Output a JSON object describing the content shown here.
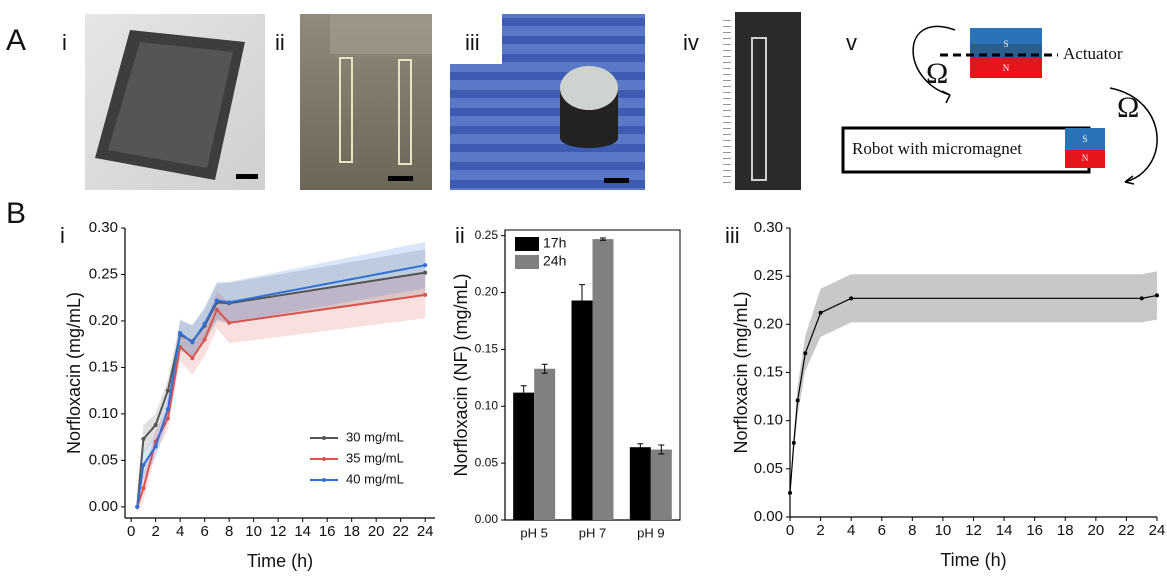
{
  "figure": {
    "panel_a": "A",
    "panel_b": "B",
    "a_subpanels": [
      "i",
      "ii",
      "iii",
      "iv",
      "v"
    ],
    "b_subpanels": [
      "i",
      "ii",
      "iii"
    ],
    "diagram": {
      "actuator": "Actuator",
      "robot": "Robot with micromagnet",
      "omega_1": "Ω",
      "omega_2": "Ω",
      "magnet_1_s": "S",
      "magnet_1_n": "N",
      "magnet_2_s": "S",
      "magnet_2_n": "N"
    }
  },
  "chart_data": [
    {
      "type": "line",
      "x_label": "Time (h)",
      "y_label": "Norfloxacin (mg/mL)",
      "x": [
        0.5,
        1,
        2,
        3,
        4,
        5,
        6,
        7,
        8,
        24
      ],
      "xlim": [
        -0.5,
        24.8
      ],
      "xticks": [
        0,
        2,
        4,
        6,
        8,
        10,
        12,
        14,
        16,
        18,
        20,
        22,
        24
      ],
      "ylim": [
        -0.012,
        0.3
      ],
      "yticks": [
        {
          "value": 0,
          "label": "0.00"
        },
        {
          "value": 0.05,
          "label": "0.05"
        },
        {
          "value": 0.1,
          "label": "0.10"
        },
        {
          "value": 0.15,
          "label": "0.15"
        },
        {
          "value": 0.2,
          "label": "0.20"
        },
        {
          "value": 0.25,
          "label": "0.25"
        },
        {
          "value": 0.3,
          "label": "0.30"
        }
      ],
      "legend": "lower right",
      "series": [
        {
          "name": "30 mg/mL",
          "color": "#555555",
          "values": [
            0,
            0.073,
            0.088,
            0.125,
            0.185,
            0.178,
            0.195,
            0.22,
            0.219,
            0.252
          ],
          "errors": [
            0.005,
            0.015,
            0.012,
            0.012,
            0.015,
            0.018,
            0.018,
            0.02,
            0.022,
            0.025
          ]
        },
        {
          "name": "35 mg/mL",
          "color": "#d9534f",
          "values": [
            0,
            0.02,
            0.07,
            0.095,
            0.172,
            0.16,
            0.18,
            0.212,
            0.198,
            0.228
          ],
          "errors": [
            0.005,
            0.015,
            0.012,
            0.012,
            0.015,
            0.018,
            0.018,
            0.02,
            0.022,
            0.025
          ]
        },
        {
          "name": "40 mg/mL",
          "color": "#2f6fd6",
          "values": [
            0,
            0.045,
            0.065,
            0.105,
            0.187,
            0.177,
            0.197,
            0.222,
            0.22,
            0.26
          ],
          "errors": [
            0.005,
            0.015,
            0.012,
            0.012,
            0.015,
            0.018,
            0.018,
            0.02,
            0.022,
            0.025
          ]
        }
      ]
    },
    {
      "type": "bar",
      "y_label": "Norfloxacin (NF) (mg/mL)",
      "categories": [
        "pH 5",
        "pH 7",
        "pH 9"
      ],
      "ylim": [
        0,
        0.255
      ],
      "yticks": [
        {
          "value": 0,
          "label": "0.00"
        },
        {
          "value": 0.05,
          "label": "0.05"
        },
        {
          "value": 0.1,
          "label": "0.10"
        },
        {
          "value": 0.15,
          "label": "0.15"
        },
        {
          "value": 0.2,
          "label": "0.20"
        },
        {
          "value": 0.25,
          "label": "0.25"
        }
      ],
      "legend": "upper left",
      "series": [
        {
          "name": "17h",
          "color": "#000000",
          "values": [
            0.112,
            0.193,
            0.064
          ],
          "errors": [
            0.006,
            0.014,
            0.003
          ]
        },
        {
          "name": "24h",
          "color": "#808080",
          "values": [
            0.133,
            0.247,
            0.062
          ],
          "errors": [
            0.004,
            0.001,
            0.004
          ]
        }
      ]
    },
    {
      "type": "line",
      "x_label": "Time (h)",
      "y_label": "Norfloxacin (mg/mL)",
      "x": [
        0,
        0.25,
        0.5,
        1,
        2,
        4,
        23,
        24
      ],
      "xlim": [
        0,
        24
      ],
      "xticks": [
        0,
        2,
        4,
        6,
        8,
        10,
        12,
        14,
        16,
        18,
        20,
        22,
        24
      ],
      "ylim": [
        0,
        0.3
      ],
      "yticks": [
        {
          "value": 0,
          "label": "0.00"
        },
        {
          "value": 0.05,
          "label": "0.05"
        },
        {
          "value": 0.1,
          "label": "0.10"
        },
        {
          "value": 0.15,
          "label": "0.15"
        },
        {
          "value": 0.2,
          "label": "0.20"
        },
        {
          "value": 0.25,
          "label": "0.25"
        },
        {
          "value": 0.3,
          "label": "0.30"
        }
      ],
      "series": [
        {
          "color": "#000000",
          "values": [
            0.025,
            0.077,
            0.121,
            0.17,
            0.212,
            0.227,
            0.227,
            0.23
          ],
          "errors": [
            0.005,
            0.01,
            0.015,
            0.018,
            0.025,
            0.025,
            0.025,
            0.025
          ]
        }
      ]
    }
  ]
}
